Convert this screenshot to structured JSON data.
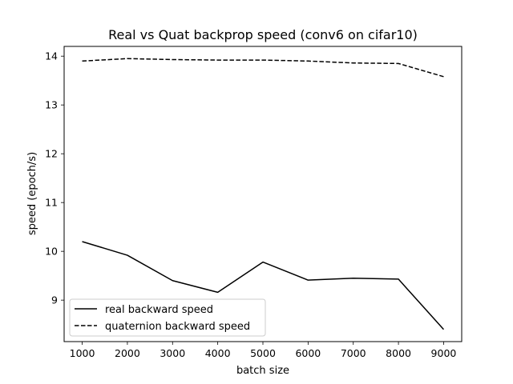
{
  "chart_data": {
    "type": "line",
    "title": "Real vs Quat backprop speed (conv6 on cifar10)",
    "xlabel": "batch size",
    "ylabel": "speed (epoch/s)",
    "x": [
      1000,
      2000,
      3000,
      4000,
      5000,
      6000,
      7000,
      8000,
      9000
    ],
    "xticks": [
      1000,
      2000,
      3000,
      4000,
      5000,
      6000,
      7000,
      8000,
      9000
    ],
    "xtick_labels": [
      "1000",
      "2000",
      "3000",
      "4000",
      "5000",
      "6000",
      "7000",
      "8000",
      "9000"
    ],
    "yticks": [
      9,
      10,
      11,
      12,
      13,
      14
    ],
    "ytick_labels": [
      "9",
      "10",
      "11",
      "12",
      "13",
      "14"
    ],
    "xlim": [
      600,
      9400
    ],
    "ylim": [
      8.15,
      14.2
    ],
    "grid": false,
    "legend_position": "lower-left",
    "series": [
      {
        "name": "real backward speed",
        "line_style": "solid",
        "color": "#000000",
        "values": [
          10.2,
          9.92,
          9.4,
          9.16,
          9.78,
          9.41,
          9.45,
          9.43,
          8.4
        ]
      },
      {
        "name": "quaternion backward speed",
        "line_style": "dashed",
        "color": "#000000",
        "values": [
          13.9,
          13.95,
          13.93,
          13.92,
          13.92,
          13.9,
          13.86,
          13.85,
          13.58
        ]
      }
    ]
  }
}
